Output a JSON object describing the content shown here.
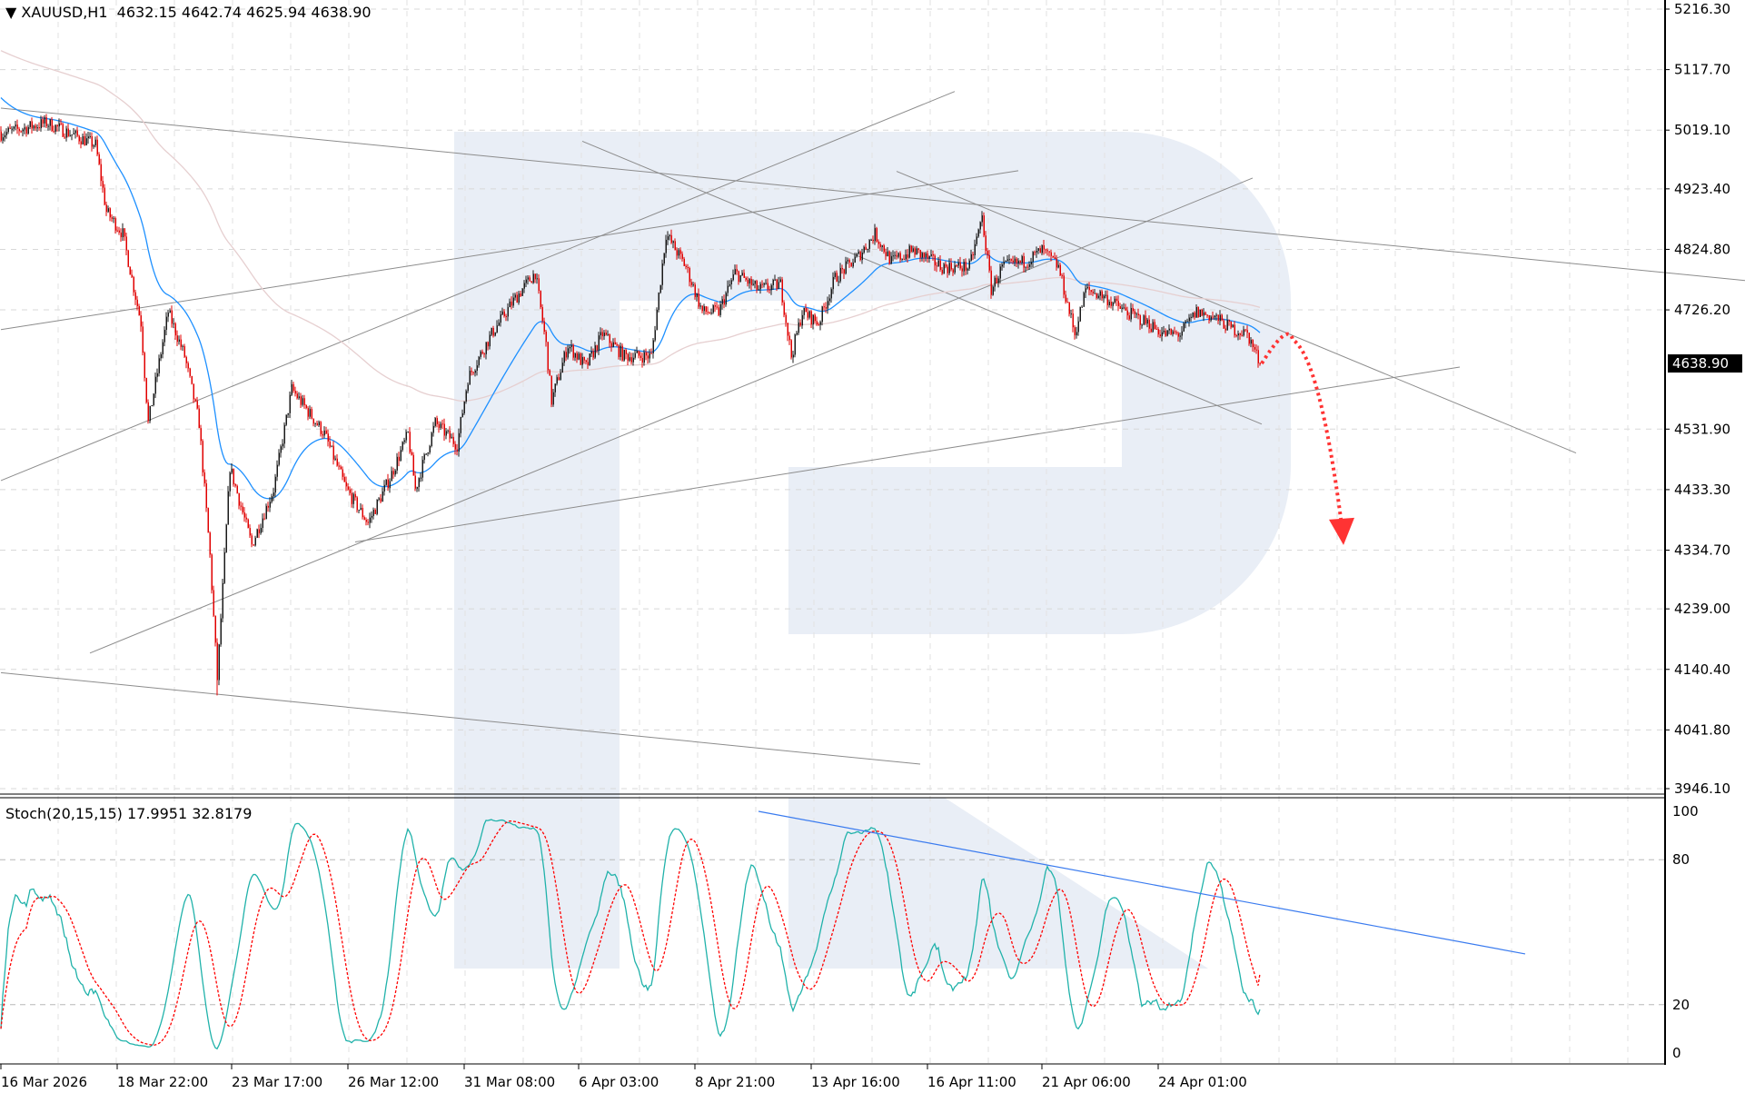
{
  "header": {
    "symbol": "XAUUSD,H1",
    "ohlc": "4632.15 4642.74 4625.94 4638.90"
  },
  "indicator": {
    "label": "Stoch(20,15,15)",
    "values": "17.9951 32.8179"
  },
  "colors": {
    "bull": "#1a1a1a",
    "bear": "#e00000",
    "ma_fast": "#1e90ff",
    "ma_slow": "#e6cfd0",
    "stoch_main": "#20b2aa",
    "stoch_signal": "#ff0000",
    "trendline": "#8c8c8c",
    "stoch_trendline": "#3a7bef",
    "forecast": "#ff3333",
    "watermark": "#e9eef6"
  },
  "chart_data": [
    {
      "type": "candlestick",
      "title": "XAUUSD,H1",
      "timeframe": "H1",
      "last_price": "4638.90",
      "price_ticks": [
        "5216.30",
        "5117.70",
        "5019.10",
        "4923.40",
        "4824.80",
        "4726.20",
        "4531.90",
        "4433.30",
        "4334.70",
        "4239.00",
        "4140.40",
        "4041.80",
        "3946.10"
      ],
      "ylim": [
        3946.1,
        5216.3
      ],
      "date_ticks": [
        {
          "bar": 0,
          "label": "16 Mar 2026"
        },
        {
          "bar": 64,
          "label": "18 Mar 22:00"
        },
        {
          "bar": 127,
          "label": "23 Mar 17:00"
        },
        {
          "bar": 191,
          "label": "26 Mar 12:00"
        },
        {
          "bar": 255,
          "label": "31 Mar 08:00"
        },
        {
          "bar": 318,
          "label": "6 Apr 03:00"
        },
        {
          "bar": 382,
          "label": "8 Apr 21:00"
        },
        {
          "bar": 446,
          "label": "13 Apr 16:00"
        },
        {
          "bar": 510,
          "label": "16 Apr 11:00"
        },
        {
          "bar": 573,
          "label": "21 Apr 06:00"
        },
        {
          "bar": 637,
          "label": "24 Apr 01:00"
        }
      ],
      "close_path": [
        [
          0,
          5013
        ],
        [
          25,
          5031
        ],
        [
          52,
          4995
        ],
        [
          58,
          4886
        ],
        [
          67,
          4850
        ],
        [
          77,
          4705
        ],
        [
          81,
          4542
        ],
        [
          92,
          4723
        ],
        [
          101,
          4651
        ],
        [
          109,
          4542
        ],
        [
          115,
          4325
        ],
        [
          119,
          4125
        ],
        [
          126,
          4470
        ],
        [
          138,
          4343
        ],
        [
          150,
          4434
        ],
        [
          160,
          4597
        ],
        [
          178,
          4524
        ],
        [
          190,
          4434
        ],
        [
          202,
          4379
        ],
        [
          214,
          4452
        ],
        [
          224,
          4524
        ],
        [
          228,
          4434
        ],
        [
          239,
          4542
        ],
        [
          251,
          4506
        ],
        [
          257,
          4615
        ],
        [
          270,
          4687
        ],
        [
          282,
          4741
        ],
        [
          294,
          4787
        ],
        [
          300,
          4669
        ],
        [
          303,
          4578
        ],
        [
          312,
          4669
        ],
        [
          322,
          4633
        ],
        [
          331,
          4687
        ],
        [
          343,
          4651
        ],
        [
          358,
          4651
        ],
        [
          366,
          4850
        ],
        [
          377,
          4796
        ],
        [
          386,
          4723
        ],
        [
          395,
          4723
        ],
        [
          404,
          4787
        ],
        [
          417,
          4759
        ],
        [
          429,
          4768
        ],
        [
          435,
          4651
        ],
        [
          441,
          4723
        ],
        [
          450,
          4705
        ],
        [
          459,
          4778
        ],
        [
          472,
          4814
        ],
        [
          481,
          4850
        ],
        [
          490,
          4805
        ],
        [
          502,
          4823
        ],
        [
          518,
          4796
        ],
        [
          533,
          4796
        ],
        [
          540,
          4877
        ],
        [
          545,
          4759
        ],
        [
          551,
          4796
        ],
        [
          564,
          4805
        ],
        [
          573,
          4823
        ],
        [
          582,
          4796
        ],
        [
          591,
          4687
        ],
        [
          597,
          4759
        ],
        [
          606,
          4750
        ],
        [
          619,
          4723
        ],
        [
          631,
          4705
        ],
        [
          640,
          4687
        ],
        [
          649,
          4687
        ],
        [
          658,
          4723
        ],
        [
          668,
          4714
        ],
        [
          677,
          4696
        ],
        [
          686,
          4687
        ],
        [
          693,
          4638.9
        ]
      ],
      "spike_low": {
        "bar": 119,
        "price": 4098
      },
      "trendlines": [
        [
          [
            0,
            5055
          ],
          [
            960,
            4774
          ]
        ],
        [
          [
            0,
            4694
          ],
          [
            560,
            4953
          ]
        ],
        [
          [
            0,
            4448
          ],
          [
            525,
            5082
          ]
        ],
        [
          [
            49,
            4167
          ],
          [
            689,
            4941
          ]
        ],
        [
          [
            195,
            4348
          ],
          [
            803,
            4633
          ]
        ],
        [
          [
            0,
            4135
          ],
          [
            506,
            3986
          ]
        ],
        [
          [
            320,
            5001
          ],
          [
            694,
            4540
          ]
        ],
        [
          [
            493,
            4952
          ],
          [
            867,
            4493
          ]
        ]
      ],
      "forecast": [
        [
          694,
          4638.9
        ],
        [
          711,
          4678
        ],
        [
          738,
          4343
        ]
      ]
    },
    {
      "type": "line",
      "title": "Stoch(20,15,15)",
      "ylim": [
        0,
        100
      ],
      "ticks": [
        "100",
        "80",
        "20",
        "0"
      ],
      "levels": [
        80,
        20
      ],
      "last_main": 17.9951,
      "last_signal": 32.8179,
      "trendline": [
        [
          417,
          100
        ],
        [
          839,
          41
        ]
      ]
    }
  ]
}
